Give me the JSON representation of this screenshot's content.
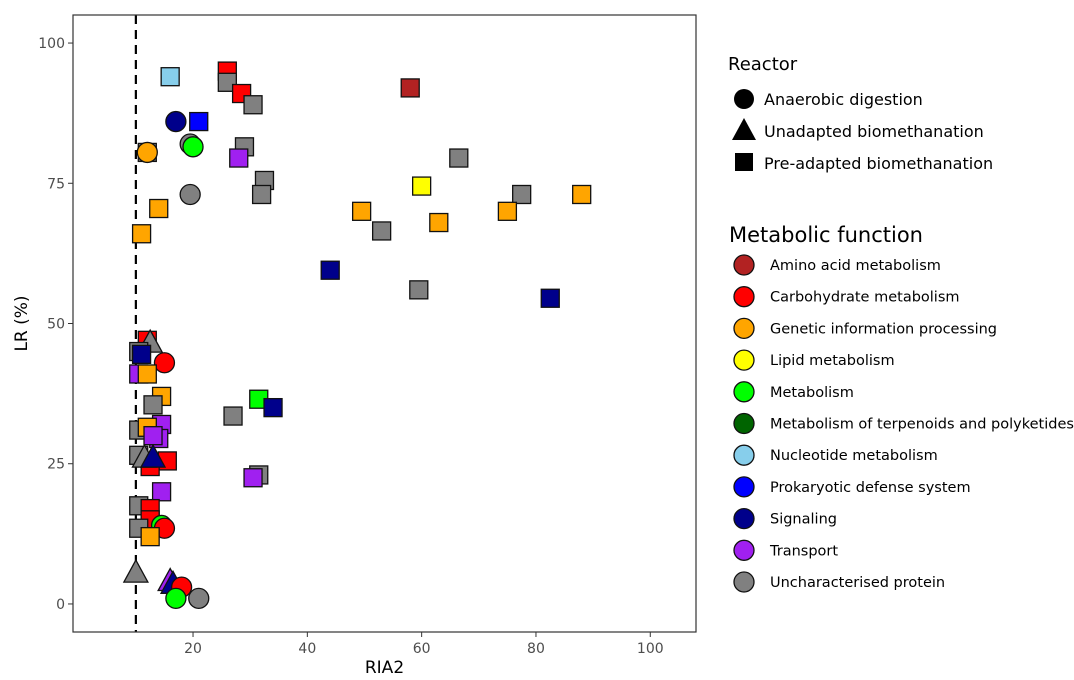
{
  "chart_data": {
    "type": "scatter",
    "xlabel": "RIA2",
    "ylabel": "LR (%)",
    "xlim": [
      -1,
      108
    ],
    "ylim": [
      -5,
      105
    ],
    "x_ticks": [
      20,
      40,
      60,
      80,
      100
    ],
    "y_ticks": [
      0,
      25,
      50,
      75,
      100
    ],
    "grid": false,
    "reference_line": {
      "x": 10,
      "style": "dashed"
    },
    "legend_position": "right",
    "shape_legend": {
      "title": "Reactor",
      "items": [
        {
          "label": "Anaerobic digestion",
          "shape": "circle"
        },
        {
          "label": "Unadapted biomethanation",
          "shape": "triangle"
        },
        {
          "label": "Pre-adapted biomethanation",
          "shape": "square"
        }
      ]
    },
    "color_legend": {
      "title": "Metabolic function",
      "items": [
        {
          "label": "Amino acid metabolism",
          "color": "#B22222"
        },
        {
          "label": "Carbohydrate metabolism",
          "color": "#FF0000"
        },
        {
          "label": "Genetic information processing",
          "color": "#FFA500"
        },
        {
          "label": "Lipid metabolism",
          "color": "#FFFF00"
        },
        {
          "label": "Metabolism",
          "color": "#00FF00"
        },
        {
          "label": "Metabolism of terpenoids and polyketides",
          "color": "#006400"
        },
        {
          "label": "Nucleotide metabolism",
          "color": "#87CEEB"
        },
        {
          "label": "Prokaryotic defense system",
          "color": "#0000FF"
        },
        {
          "label": "Signaling",
          "color": "#00008B"
        },
        {
          "label": "Transport",
          "color": "#A020F0"
        },
        {
          "label": "Uncharacterised protein",
          "color": "#808080"
        }
      ]
    },
    "points": [
      {
        "x": 26,
        "y": 95,
        "shape": "square",
        "function": "Carbohydrate metabolism"
      },
      {
        "x": 26,
        "y": 93,
        "shape": "square",
        "function": "Uncharacterised protein"
      },
      {
        "x": 28.5,
        "y": 91,
        "shape": "square",
        "function": "Carbohydrate metabolism"
      },
      {
        "x": 30.5,
        "y": 89,
        "shape": "square",
        "function": "Uncharacterised protein"
      },
      {
        "x": 16,
        "y": 94,
        "shape": "square",
        "function": "Nucleotide metabolism"
      },
      {
        "x": 58,
        "y": 92,
        "shape": "square",
        "function": "Amino acid metabolism"
      },
      {
        "x": 21,
        "y": 86,
        "shape": "square",
        "function": "Prokaryotic defense system"
      },
      {
        "x": 17,
        "y": 86,
        "shape": "circle",
        "function": "Signaling"
      },
      {
        "x": 19.5,
        "y": 82,
        "shape": "circle",
        "function": "Uncharacterised protein"
      },
      {
        "x": 20,
        "y": 81.5,
        "shape": "circle",
        "function": "Metabolism"
      },
      {
        "x": 29,
        "y": 81.5,
        "shape": "square",
        "function": "Uncharacterised protein"
      },
      {
        "x": 28,
        "y": 79.5,
        "shape": "square",
        "function": "Transport"
      },
      {
        "x": 12,
        "y": 80.5,
        "shape": "square",
        "function": "Uncharacterised protein"
      },
      {
        "x": 12,
        "y": 80.5,
        "shape": "circle",
        "function": "Genetic information processing"
      },
      {
        "x": 66.5,
        "y": 79.5,
        "shape": "square",
        "function": "Uncharacterised protein"
      },
      {
        "x": 32.5,
        "y": 75.5,
        "shape": "square",
        "function": "Uncharacterised protein"
      },
      {
        "x": 32,
        "y": 73,
        "shape": "square",
        "function": "Uncharacterised protein"
      },
      {
        "x": 19.5,
        "y": 73,
        "shape": "circle",
        "function": "Uncharacterised protein"
      },
      {
        "x": 60,
        "y": 74.5,
        "shape": "square",
        "function": "Lipid metabolism"
      },
      {
        "x": 77.5,
        "y": 73,
        "shape": "square",
        "function": "Uncharacterised protein"
      },
      {
        "x": 88,
        "y": 73,
        "shape": "square",
        "function": "Genetic information processing"
      },
      {
        "x": 14,
        "y": 70.5,
        "shape": "square",
        "function": "Genetic information processing"
      },
      {
        "x": 49.5,
        "y": 70,
        "shape": "square",
        "function": "Genetic information processing"
      },
      {
        "x": 75,
        "y": 70,
        "shape": "square",
        "function": "Genetic information processing"
      },
      {
        "x": 63,
        "y": 68,
        "shape": "square",
        "function": "Genetic information processing"
      },
      {
        "x": 53,
        "y": 66.5,
        "shape": "square",
        "function": "Uncharacterised protein"
      },
      {
        "x": 11,
        "y": 66,
        "shape": "square",
        "function": "Genetic information processing"
      },
      {
        "x": 44,
        "y": 59.5,
        "shape": "square",
        "function": "Signaling"
      },
      {
        "x": 59.5,
        "y": 56,
        "shape": "square",
        "function": "Uncharacterised protein"
      },
      {
        "x": 82.5,
        "y": 54.5,
        "shape": "square",
        "function": "Signaling"
      },
      {
        "x": 12,
        "y": 47,
        "shape": "square",
        "function": "Carbohydrate metabolism"
      },
      {
        "x": 12.5,
        "y": 46.5,
        "shape": "triangle",
        "function": "Uncharacterised protein"
      },
      {
        "x": 10.5,
        "y": 45,
        "shape": "square",
        "function": "Uncharacterised protein"
      },
      {
        "x": 11,
        "y": 44.5,
        "shape": "square",
        "function": "Signaling"
      },
      {
        "x": 15,
        "y": 43,
        "shape": "circle",
        "function": "Carbohydrate metabolism"
      },
      {
        "x": 10.5,
        "y": 41,
        "shape": "square",
        "function": "Transport"
      },
      {
        "x": 12,
        "y": 41,
        "shape": "square",
        "function": "Genetic information processing"
      },
      {
        "x": 14.5,
        "y": 37,
        "shape": "square",
        "function": "Genetic information processing"
      },
      {
        "x": 31.5,
        "y": 36.5,
        "shape": "square",
        "function": "Metabolism"
      },
      {
        "x": 13,
        "y": 35.5,
        "shape": "square",
        "function": "Uncharacterised protein"
      },
      {
        "x": 34,
        "y": 35,
        "shape": "square",
        "function": "Signaling"
      },
      {
        "x": 27,
        "y": 33.5,
        "shape": "square",
        "function": "Uncharacterised protein"
      },
      {
        "x": 14.5,
        "y": 32,
        "shape": "square",
        "function": "Transport"
      },
      {
        "x": 10.5,
        "y": 31,
        "shape": "square",
        "function": "Uncharacterised protein"
      },
      {
        "x": 12,
        "y": 31.5,
        "shape": "square",
        "function": "Genetic information processing"
      },
      {
        "x": 14,
        "y": 29.5,
        "shape": "square",
        "function": "Transport"
      },
      {
        "x": 13,
        "y": 30,
        "shape": "square",
        "function": "Transport"
      },
      {
        "x": 10.5,
        "y": 26.5,
        "shape": "square",
        "function": "Uncharacterised protein"
      },
      {
        "x": 15.5,
        "y": 25.5,
        "shape": "square",
        "function": "Carbohydrate metabolism"
      },
      {
        "x": 12.5,
        "y": 24.5,
        "shape": "square",
        "function": "Carbohydrate metabolism"
      },
      {
        "x": 11.5,
        "y": 26,
        "shape": "triangle",
        "function": "Uncharacterised protein"
      },
      {
        "x": 13,
        "y": 26,
        "shape": "triangle",
        "function": "Signaling"
      },
      {
        "x": 31.5,
        "y": 23,
        "shape": "square",
        "function": "Uncharacterised protein"
      },
      {
        "x": 30.5,
        "y": 22.5,
        "shape": "square",
        "function": "Transport"
      },
      {
        "x": 14.5,
        "y": 20,
        "shape": "square",
        "function": "Transport"
      },
      {
        "x": 10.5,
        "y": 17.5,
        "shape": "square",
        "function": "Uncharacterised protein"
      },
      {
        "x": 12.5,
        "y": 17,
        "shape": "square",
        "function": "Carbohydrate metabolism"
      },
      {
        "x": 12.5,
        "y": 15,
        "shape": "square",
        "function": "Carbohydrate metabolism"
      },
      {
        "x": 14.5,
        "y": 14,
        "shape": "circle",
        "function": "Metabolism"
      },
      {
        "x": 15,
        "y": 13.5,
        "shape": "circle",
        "function": "Carbohydrate metabolism"
      },
      {
        "x": 10.5,
        "y": 13.5,
        "shape": "square",
        "function": "Uncharacterised protein"
      },
      {
        "x": 12.5,
        "y": 12,
        "shape": "square",
        "function": "Genetic information processing"
      },
      {
        "x": 10,
        "y": 5.5,
        "shape": "triangle",
        "function": "Uncharacterised protein"
      },
      {
        "x": 16,
        "y": 4,
        "shape": "triangle",
        "function": "Transport"
      },
      {
        "x": 16.5,
        "y": 3.5,
        "shape": "triangle",
        "function": "Signaling"
      },
      {
        "x": 18,
        "y": 3,
        "shape": "circle",
        "function": "Carbohydrate metabolism"
      },
      {
        "x": 17,
        "y": 1,
        "shape": "circle",
        "function": "Metabolism"
      },
      {
        "x": 21,
        "y": 1,
        "shape": "circle",
        "function": "Uncharacterised protein"
      }
    ]
  }
}
